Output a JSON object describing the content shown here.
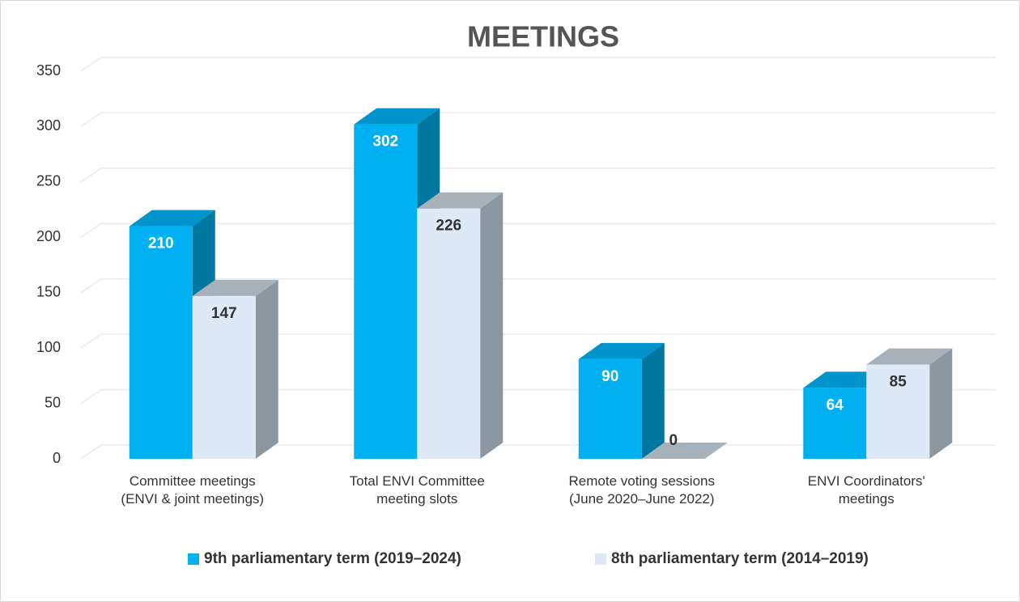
{
  "chart_data": {
    "type": "bar3d",
    "title": "MEETINGS",
    "categories": [
      "Committee meetings\n(ENVI & joint meetings)",
      "Total ENVI Committee\nmeeting slots",
      "Remote voting sessions\n(June 2020–June 2022)",
      "ENVI Coordinators'\nmeetings"
    ],
    "series": [
      {
        "name": "9th parliamentary term (2019–2024)",
        "color": "#00b0f0",
        "values": [
          210,
          302,
          90,
          64
        ]
      },
      {
        "name": "8th parliamentary term (2014–2019)",
        "color": "#dde9f7",
        "values": [
          147,
          226,
          0,
          85
        ]
      }
    ],
    "ylim": [
      0,
      350
    ],
    "yticks": [
      0,
      50,
      100,
      150,
      200,
      250,
      300,
      350
    ],
    "grid": true,
    "legend": "bottom"
  }
}
